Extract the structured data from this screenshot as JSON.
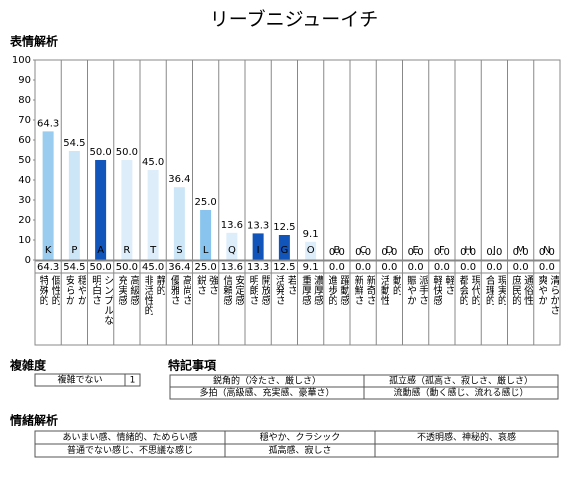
{
  "title": "リーブニジューイチ",
  "section_expression": "表情解析",
  "chart_data": {
    "type": "bar",
    "categories": [
      "K",
      "P",
      "A",
      "R",
      "T",
      "S",
      "L",
      "Q",
      "I",
      "G",
      "O",
      "B",
      "C",
      "D",
      "E",
      "F",
      "H",
      "J",
      "M",
      "N"
    ],
    "values": [
      64.3,
      54.5,
      50,
      50,
      45,
      36.4,
      25,
      13.6,
      13.3,
      12.5,
      9.1,
      0,
      0,
      0,
      0,
      0,
      0,
      0,
      0,
      0
    ],
    "value_labels": [
      "64.3",
      "54.5",
      "50.0",
      "50.0",
      "45.0",
      "36.4",
      "25.0",
      "13.6",
      "13.3",
      "12.5",
      "9.1",
      "0.0",
      "0.0",
      "0.0",
      "0.0",
      "0.0",
      "0.0",
      "0.0",
      "0.0",
      "0.0"
    ],
    "colors": [
      "#99ccee",
      "#cce6f7",
      "#1155bb",
      "#ddeefa",
      "#ddeefa",
      "#cce6f7",
      "#88c4ee",
      "#ddeefa",
      "#1155bb",
      "#1155bb",
      "#ddeefa",
      "#ddeefa",
      "#ddeefa",
      "#ddeefa",
      "#ddeefa",
      "#ddeefa",
      "#ddeefa",
      "#ddeefa",
      "#ddeefa",
      "#ddeefa"
    ],
    "descriptions": [
      [
        "特殊的",
        "個性的"
      ],
      [
        "安らか",
        "穏やか"
      ],
      [
        "明白さ",
        "シンプルな"
      ],
      [
        "充実感",
        "高級感"
      ],
      [
        "非活性的",
        "静的"
      ],
      [
        "優雅さ",
        "高尚さ"
      ],
      [
        "鋭さ",
        "強さ"
      ],
      [
        "信頼感",
        "安定感"
      ],
      [
        "明朗さ",
        "開放感"
      ],
      [
        "活発さ",
        "若さ"
      ],
      [
        "重厚感",
        "濃厚感"
      ],
      [
        "進歩的",
        "躍動感"
      ],
      [
        "新鮮さ",
        "新奇さ"
      ],
      [
        "活動性",
        "動的"
      ],
      [
        "賑やか",
        "派手さ"
      ],
      [
        "軽快感",
        "軽さ"
      ],
      [
        "都会的",
        "現代的"
      ],
      [
        "合理的",
        "現実的"
      ],
      [
        "庶民的",
        "通俗性"
      ],
      [
        "爽やか",
        "清らかさ"
      ]
    ],
    "ylim": [
      0,
      100
    ],
    "yticks": [
      0,
      10,
      20,
      30,
      40,
      50,
      60,
      70,
      80,
      90,
      100
    ]
  },
  "complexity": {
    "title": "複雑度",
    "label": "複雑でない",
    "value": "1"
  },
  "notes": {
    "title": "特記事項",
    "rows": [
      [
        "鋭角的（冷たさ、厳しさ）",
        "孤立感（孤高さ、寂しさ、厳しさ）"
      ],
      [
        "多拍（高級感、充実感、豪華さ）",
        "流動感（動く感じ、流れる感じ）"
      ]
    ]
  },
  "emotion": {
    "title": "情緒解析",
    "rows": [
      [
        "あいまい感、情緒的、ためらい感",
        "穏やか、クラシック",
        "不透明感、神秘的、哀感"
      ],
      [
        "普通でない感じ、不思議な感じ",
        "孤高感、寂しさ"
      ]
    ]
  }
}
